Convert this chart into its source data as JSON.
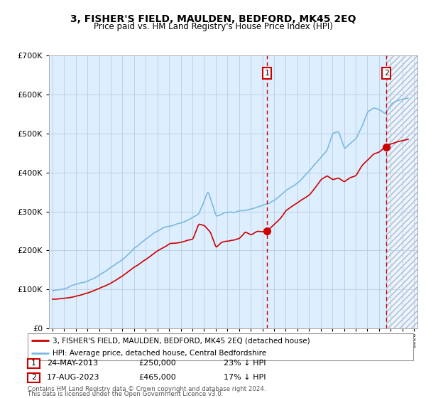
{
  "title": "3, FISHER'S FIELD, MAULDEN, BEDFORD, MK45 2EQ",
  "subtitle": "Price paid vs. HM Land Registry's House Price Index (HPI)",
  "hpi_label": "HPI: Average price, detached house, Central Bedfordshire",
  "price_label": "3, FISHER'S FIELD, MAULDEN, BEDFORD, MK45 2EQ (detached house)",
  "footer1": "Contains HM Land Registry data © Crown copyright and database right 2024.",
  "footer2": "This data is licensed under the Open Government Licence v3.0.",
  "sale1_date": "24-MAY-2013",
  "sale1_price": "£250,000",
  "sale1_hpi": "23% ↓ HPI",
  "sale2_date": "17-AUG-2023",
  "sale2_price": "£465,000",
  "sale2_hpi": "17% ↓ HPI",
  "ylim": [
    0,
    700000
  ],
  "yticks": [
    0,
    100000,
    200000,
    300000,
    400000,
    500000,
    600000,
    700000
  ],
  "hpi_color": "#7cb9e0",
  "price_color": "#cc0000",
  "vline_color": "#cc0000",
  "bg_color": "#ddeeff",
  "grid_color": "#bbccdd",
  "sale1_year": 2013.39,
  "sale2_year": 2023.63,
  "xmin": 1995,
  "xmax": 2026
}
